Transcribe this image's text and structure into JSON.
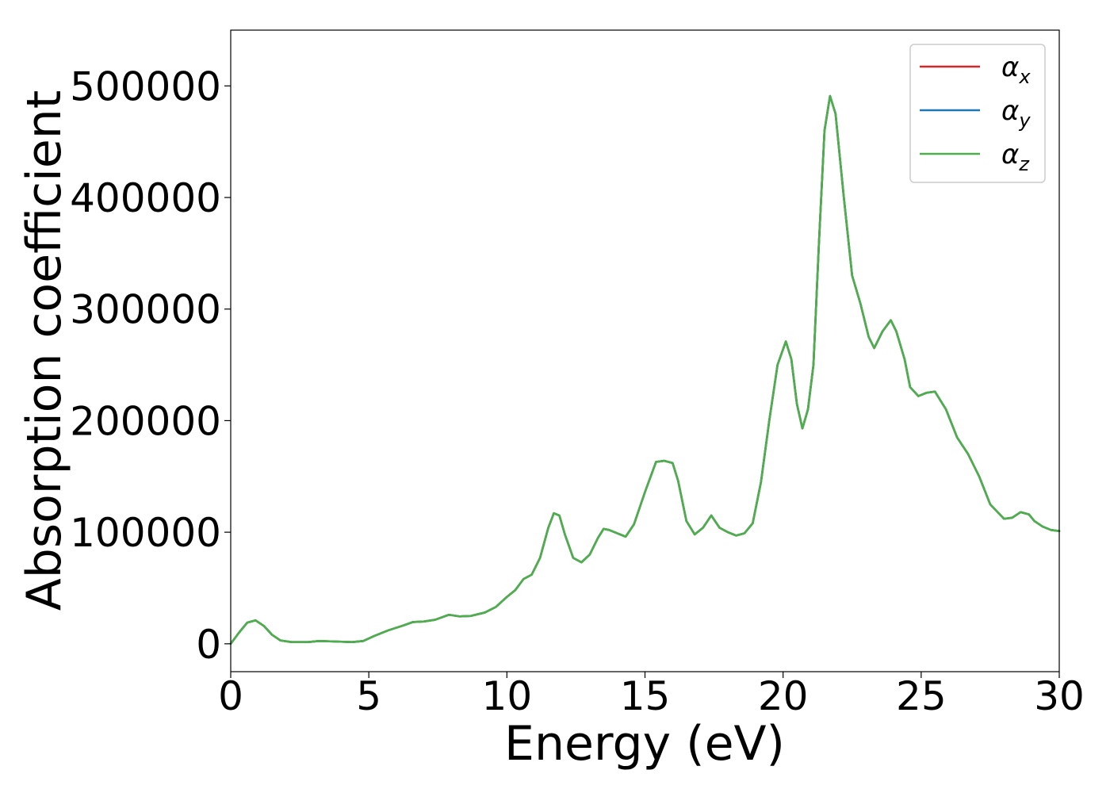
{
  "chart_data": {
    "type": "line",
    "title": "",
    "xlabel": "Energy (eV)",
    "ylabel": "Absorption coefficient",
    "xlim": [
      0,
      30
    ],
    "ylim": [
      -25000,
      550000
    ],
    "x_ticks": [
      0,
      5,
      10,
      15,
      20,
      25,
      30
    ],
    "x_tick_labels": [
      "0",
      "5",
      "10",
      "15",
      "20",
      "25",
      "30"
    ],
    "y_ticks": [
      0,
      100000,
      200000,
      300000,
      400000,
      500000
    ],
    "y_tick_labels": [
      "0",
      "100000",
      "200000",
      "300000",
      "400000",
      "500000"
    ],
    "grid": false,
    "legend_position": "top-right",
    "x": [
      0,
      0.3,
      0.6,
      0.9,
      1.2,
      1.5,
      1.8,
      2.2,
      2.8,
      3.2,
      3.8,
      4.4,
      4.8,
      5.2,
      5.7,
      6.2,
      6.6,
      7.0,
      7.4,
      7.9,
      8.3,
      8.7,
      9.2,
      9.6,
      10.0,
      10.3,
      10.6,
      10.9,
      11.2,
      11.5,
      11.7,
      11.9,
      12.1,
      12.4,
      12.7,
      13.0,
      13.3,
      13.5,
      13.7,
      14.0,
      14.3,
      14.6,
      15.0,
      15.4,
      15.7,
      16.0,
      16.2,
      16.5,
      16.8,
      17.1,
      17.4,
      17.7,
      18.0,
      18.3,
      18.6,
      18.9,
      19.2,
      19.5,
      19.8,
      20.1,
      20.3,
      20.5,
      20.7,
      20.9,
      21.1,
      21.3,
      21.5,
      21.7,
      21.9,
      22.0,
      22.2,
      22.5,
      22.8,
      23.1,
      23.3,
      23.6,
      23.9,
      24.1,
      24.4,
      24.6,
      24.9,
      25.2,
      25.5,
      25.9,
      26.3,
      26.7,
      27.1,
      27.5,
      28.0,
      28.3,
      28.6,
      28.9,
      29.1,
      29.4,
      29.7,
      30.0
    ],
    "series": [
      {
        "name": "α_x",
        "color": "#d62728",
        "values": [
          0,
          10000,
          19000,
          21000,
          16000,
          8000,
          3000,
          1500,
          1500,
          2500,
          2000,
          1500,
          2500,
          7000,
          12000,
          16000,
          19500,
          20000,
          21500,
          26000,
          24500,
          25000,
          28000,
          33000,
          42000,
          48000,
          58000,
          62000,
          77000,
          104000,
          117000,
          115000,
          98000,
          77000,
          73000,
          80000,
          95000,
          103000,
          102000,
          99000,
          96000,
          107000,
          136000,
          163000,
          164000,
          162000,
          146000,
          110000,
          98000,
          104000,
          115000,
          104000,
          100000,
          97000,
          99000,
          108000,
          145000,
          200000,
          250000,
          271000,
          255000,
          215000,
          193000,
          210000,
          250000,
          360000,
          460000,
          491000,
          475000,
          450000,
          400000,
          330000,
          305000,
          275000,
          265000,
          280000,
          290000,
          280000,
          255000,
          230000,
          222000,
          225000,
          226000,
          210000,
          185000,
          170000,
          150000,
          125000,
          112000,
          113000,
          118000,
          116000,
          110000,
          105000,
          102000,
          101000
        ]
      },
      {
        "name": "α_y",
        "color": "#1f77b4",
        "values": [
          0,
          10000,
          19000,
          21000,
          16000,
          8000,
          3000,
          1500,
          1500,
          2500,
          2000,
          1500,
          2500,
          7000,
          12000,
          16000,
          19500,
          20000,
          21500,
          26000,
          24500,
          25000,
          28000,
          33000,
          42000,
          48000,
          58000,
          62000,
          77000,
          104000,
          117000,
          115000,
          98000,
          77000,
          73000,
          80000,
          95000,
          103000,
          102000,
          99000,
          96000,
          107000,
          136000,
          163000,
          164000,
          162000,
          146000,
          110000,
          98000,
          104000,
          115000,
          104000,
          100000,
          97000,
          99000,
          108000,
          145000,
          200000,
          250000,
          271000,
          255000,
          215000,
          193000,
          210000,
          250000,
          360000,
          460000,
          491000,
          475000,
          450000,
          400000,
          330000,
          305000,
          275000,
          265000,
          280000,
          290000,
          280000,
          255000,
          230000,
          222000,
          225000,
          226000,
          210000,
          185000,
          170000,
          150000,
          125000,
          112000,
          113000,
          118000,
          116000,
          110000,
          105000,
          102000,
          101000
        ]
      },
      {
        "name": "α_z",
        "color": "#4daf4a",
        "values": [
          0,
          10000,
          19000,
          21000,
          16000,
          8000,
          3000,
          1500,
          1500,
          2500,
          2000,
          1500,
          2500,
          7000,
          12000,
          16000,
          19500,
          20000,
          21500,
          26000,
          24500,
          25000,
          28000,
          33000,
          42000,
          48000,
          58000,
          62000,
          77000,
          104000,
          117000,
          115000,
          98000,
          77000,
          73000,
          80000,
          95000,
          103000,
          102000,
          99000,
          96000,
          107000,
          136000,
          163000,
          164000,
          162000,
          146000,
          110000,
          98000,
          104000,
          115000,
          104000,
          100000,
          97000,
          99000,
          108000,
          145000,
          200000,
          250000,
          271000,
          255000,
          215000,
          193000,
          210000,
          250000,
          360000,
          460000,
          491000,
          475000,
          450000,
          400000,
          330000,
          305000,
          275000,
          265000,
          280000,
          290000,
          280000,
          255000,
          230000,
          222000,
          225000,
          226000,
          210000,
          185000,
          170000,
          150000,
          125000,
          112000,
          113000,
          118000,
          116000,
          110000,
          105000,
          102000,
          101000
        ]
      }
    ],
    "legend": [
      {
        "symbol": "α",
        "subscript": "x",
        "color": "#d62728"
      },
      {
        "symbol": "α",
        "subscript": "y",
        "color": "#1f77b4"
      },
      {
        "symbol": "α",
        "subscript": "z",
        "color": "#4daf4a"
      }
    ]
  }
}
